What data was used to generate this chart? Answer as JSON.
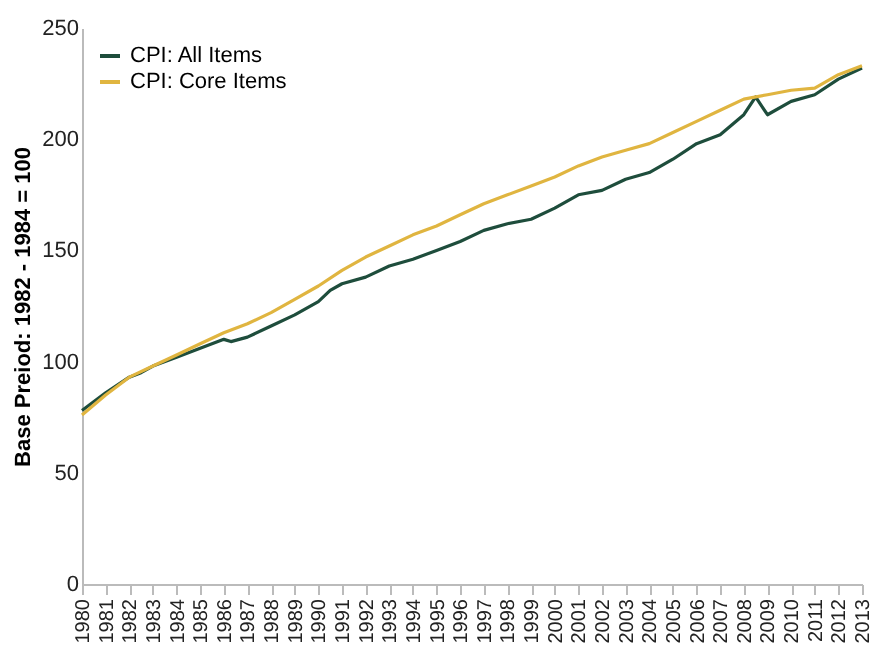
{
  "chart_data": {
    "type": "line",
    "ylabel": "Base Preiod: 1982 - 1984 = 100",
    "xlim": [
      1980,
      2013
    ],
    "xticks": [
      1980,
      1981,
      1982,
      1983,
      1984,
      1985,
      1986,
      1987,
      1988,
      1989,
      1990,
      1991,
      1992,
      1993,
      1994,
      1995,
      1996,
      1997,
      1998,
      1999,
      2000,
      2001,
      2002,
      2003,
      2004,
      2005,
      2006,
      2007,
      2008,
      2009,
      2010,
      2011,
      2012,
      2013
    ],
    "ylim": [
      0,
      250
    ],
    "yticks": [
      0,
      50,
      100,
      150,
      200,
      250
    ],
    "grid": false,
    "legend": "top left",
    "marker": "none",
    "line_style": "solid",
    "series": [
      {
        "name": "CPI: All Items",
        "color": "#1e4d3c",
        "x": [
          1980,
          1981,
          1982,
          1982.5,
          1983,
          1984,
          1985,
          1986,
          1986.3,
          1987,
          1988,
          1989,
          1990,
          1990.5,
          1991,
          1992,
          1993,
          1994,
          1995,
          1996,
          1997,
          1998,
          1999,
          2000,
          2001,
          2002,
          2003,
          2004,
          2005,
          2006,
          2007,
          2008,
          2008.5,
          2009,
          2010,
          2011,
          2012,
          2013
        ],
        "values": [
          78,
          86,
          93,
          95,
          98,
          102,
          106,
          110,
          109,
          111,
          116,
          121,
          127,
          132,
          135,
          138,
          143,
          146,
          150,
          154,
          159,
          162,
          164,
          169,
          175,
          177,
          182,
          185,
          191,
          198,
          202,
          211,
          219,
          211,
          217,
          220,
          227,
          232
        ]
      },
      {
        "name": "CPI: Core Items",
        "color": "#e0b540",
        "x": [
          1980,
          1981,
          1982,
          1983,
          1984,
          1985,
          1986,
          1987,
          1988,
          1989,
          1990,
          1991,
          1992,
          1993,
          1994,
          1995,
          1996,
          1997,
          1998,
          1999,
          2000,
          2001,
          2002,
          2003,
          2004,
          2005,
          2006,
          2007,
          2008,
          2009,
          2010,
          2011,
          2012,
          2013
        ],
        "values": [
          76,
          85,
          93,
          98,
          103,
          108,
          113,
          117,
          122,
          128,
          134,
          141,
          147,
          152,
          157,
          161,
          166,
          171,
          175,
          179,
          183,
          188,
          192,
          195,
          198,
          203,
          208,
          213,
          218,
          220,
          222,
          223,
          229,
          233
        ]
      }
    ]
  }
}
